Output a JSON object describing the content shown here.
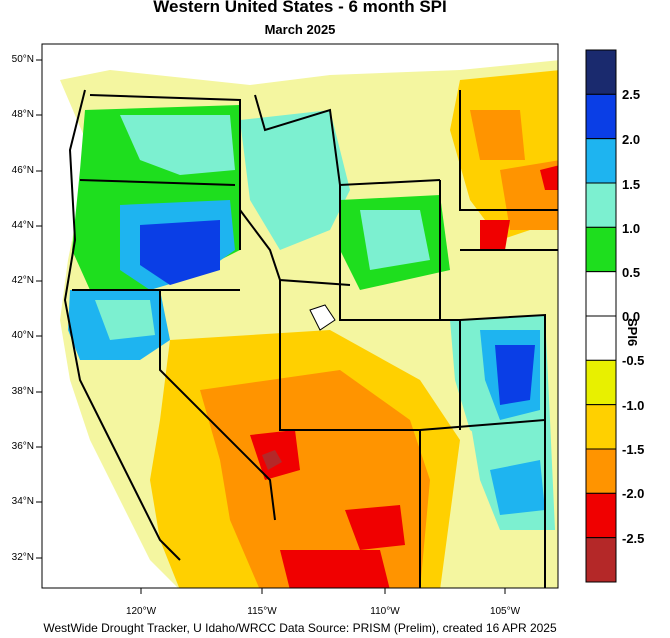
{
  "title": "Western United States - 6 month SPI",
  "subtitle": "March 2025",
  "footer": "WestWide Drought Tracker, U Idaho/WRCC Data Source: PRISM (Prelim), created 16 APR 2025",
  "latitude_labels": [
    "50°N",
    "48°N",
    "46°N",
    "44°N",
    "42°N",
    "40°N",
    "38°N",
    "36°N",
    "34°N",
    "32°N"
  ],
  "longitude_labels": [
    "120°W",
    "115°W",
    "110°W",
    "105°W"
  ],
  "colorbar": {
    "title": "SPI6",
    "labels": [
      "2.5",
      "2.0",
      "1.5",
      "1.0",
      "0.5",
      "0.0",
      "-0.5",
      "-1.0",
      "-1.5",
      "-2.0",
      "-2.5"
    ],
    "colors": [
      "#1a2a6e",
      "#0a3ee6",
      "#1eb4f0",
      "#7cf0d0",
      "#1ede1e",
      "#ffffff",
      "#ffffff",
      "#e8f000",
      "#ffd000",
      "#ff9400",
      "#f00000",
      "#b42828"
    ]
  }
}
